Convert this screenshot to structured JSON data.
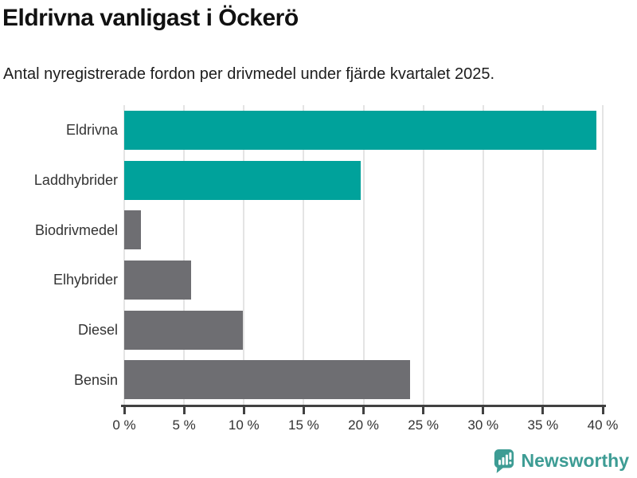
{
  "header": {
    "title": "Eldrivna vanligast i Öckerö",
    "subtitle": "Antal nyregistrerade fordon per drivmedel under fjärde kvartalet 2025."
  },
  "chart_data": {
    "type": "bar",
    "orientation": "horizontal",
    "title": "Eldrivna vanligast i Öckerö",
    "categories": [
      "Eldrivna",
      "Laddhybrider",
      "Biodrivmedel",
      "Elhybrider",
      "Diesel",
      "Bensin"
    ],
    "values": [
      39.5,
      19.8,
      1.4,
      5.6,
      9.9,
      23.9
    ],
    "unit": "%",
    "xlim": [
      0,
      40
    ],
    "xticks": [
      0,
      5,
      10,
      15,
      20,
      25,
      30,
      35,
      40
    ],
    "xtick_labels": [
      "0 %",
      "5 %",
      "10 %",
      "15 %",
      "20 %",
      "25 %",
      "30 %",
      "35 %",
      "40 %"
    ],
    "bar_colors": [
      "#00A29B",
      "#00A29B",
      "#6E6E72",
      "#6E6E72",
      "#6E6E72",
      "#6E6E72"
    ],
    "grid": true,
    "legend": "none",
    "xlabel": "",
    "ylabel": ""
  },
  "footer": {
    "brand": "Newsworthy",
    "logo_icon": "bar-chart-speech-bubble-icon"
  },
  "colors": {
    "teal_bar": "#00A29B",
    "gray_bar": "#6E6E72",
    "axis": "#414141",
    "gridline": "#E4E4E4",
    "title_text": "#111111",
    "label_text": "#333333",
    "brand_teal": "#3D9C94"
  }
}
